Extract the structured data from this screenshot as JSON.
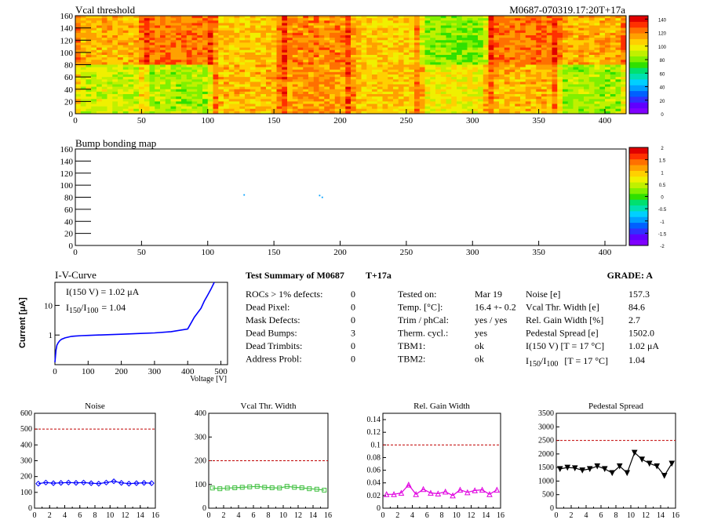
{
  "header": {
    "module_tag": "M0687-070319.17:20T+17a"
  },
  "chart_data": [
    {
      "id": "vcal-threshold",
      "type": "heatmap",
      "title": "Vcal threshold",
      "xlim": [
        0,
        416
      ],
      "ylim": [
        0,
        160
      ],
      "xticks": [
        0,
        50,
        100,
        150,
        200,
        250,
        300,
        350,
        400
      ],
      "yticks": [
        0,
        20,
        40,
        60,
        80,
        100,
        120,
        140,
        160
      ],
      "zlim": [
        0,
        145
      ],
      "zticks": [
        0,
        20,
        40,
        60,
        80,
        100,
        120,
        140
      ],
      "roc_cols": 8,
      "roc_rows": 2,
      "roc_means_top": [
        112,
        122,
        108,
        120,
        106,
        82,
        122,
        112
      ],
      "roc_means_bottom": [
        92,
        86,
        110,
        116,
        108,
        100,
        110,
        86
      ],
      "palette": [
        "#8000ff",
        "#0040ff",
        "#00b0ff",
        "#00e0c0",
        "#00e060",
        "#60e000",
        "#c0f000",
        "#ffff00",
        "#ffd000",
        "#ff9000",
        "#ff4000",
        "#e00000"
      ]
    },
    {
      "id": "bump-bonding",
      "type": "heatmap",
      "title": "Bump bonding map",
      "xlim": [
        0,
        416
      ],
      "ylim": [
        0,
        160
      ],
      "xticks": [
        0,
        50,
        100,
        150,
        200,
        250,
        300,
        350,
        400
      ],
      "yticks": [
        0,
        20,
        40,
        60,
        80,
        100,
        120,
        140,
        160
      ],
      "zlim": [
        -2,
        2
      ],
      "zticks": [
        "2",
        "1.5",
        "1",
        "0.5",
        "0",
        "-0.5",
        "-1",
        "-1.5",
        "-2"
      ],
      "points": [
        [
          127,
          85
        ],
        [
          184,
          84
        ],
        [
          186,
          81
        ]
      ]
    },
    {
      "id": "iv-curve",
      "type": "line",
      "title": "I-V-Curve",
      "xlabel": "Voltage [V]",
      "ylabel": "Current [μA]",
      "xlim": [
        0,
        520
      ],
      "ylim_log": [
        0.1,
        60
      ],
      "xticks": [
        0,
        100,
        200,
        300,
        400,
        500
      ],
      "yticks": [
        1,
        10
      ],
      "annotation_1": "I(150 V) = 1.02 μA",
      "annotation_2_base": "I",
      "annotation_2_sub1": "150",
      "annotation_2_sep": "/I",
      "annotation_2_sub2": "100",
      "annotation_2_value": "=  1.04",
      "x": [
        0,
        3,
        6,
        10,
        15,
        20,
        30,
        40,
        50,
        60,
        80,
        100,
        150,
        200,
        250,
        300,
        350,
        400,
        405,
        420,
        440,
        450,
        460,
        470,
        480
      ],
      "y": [
        0.12,
        0.3,
        0.45,
        0.55,
        0.65,
        0.72,
        0.8,
        0.85,
        0.9,
        0.92,
        0.95,
        0.97,
        1.02,
        1.06,
        1.12,
        1.18,
        1.3,
        1.6,
        2.0,
        4.0,
        8.0,
        14.0,
        22.0,
        35.0,
        60.0
      ]
    },
    {
      "id": "noise",
      "type": "line",
      "title": "Noise",
      "xlim": [
        0,
        16
      ],
      "ylim": [
        0,
        600
      ],
      "xticks": [
        0,
        2,
        4,
        6,
        8,
        10,
        12,
        14,
        16
      ],
      "yticks": [
        0,
        100,
        200,
        300,
        400,
        500,
        600
      ],
      "threshold": 500,
      "marker": "diamond",
      "color": "#0000ff",
      "x": [
        0.5,
        1.5,
        2.5,
        3.5,
        4.5,
        5.5,
        6.5,
        7.5,
        8.5,
        9.5,
        10.5,
        11.5,
        12.5,
        13.5,
        14.5,
        15.5
      ],
      "y": [
        155,
        162,
        158,
        160,
        162,
        160,
        162,
        158,
        155,
        162,
        170,
        160,
        155,
        158,
        160,
        158
      ]
    },
    {
      "id": "vcal-width",
      "type": "line",
      "title": "Vcal Thr. Width",
      "xlim": [
        0,
        16
      ],
      "ylim": [
        0,
        400
      ],
      "xticks": [
        0,
        2,
        4,
        6,
        8,
        10,
        12,
        14,
        16
      ],
      "yticks": [
        0,
        100,
        200,
        300,
        400
      ],
      "threshold": 200,
      "marker": "square",
      "color": "#40c040",
      "x": [
        0.5,
        1.5,
        2.5,
        3.5,
        4.5,
        5.5,
        6.5,
        7.5,
        8.5,
        9.5,
        10.5,
        11.5,
        12.5,
        13.5,
        14.5,
        15.5
      ],
      "y": [
        85,
        82,
        85,
        86,
        88,
        90,
        92,
        88,
        86,
        85,
        92,
        88,
        86,
        82,
        80,
        76
      ]
    },
    {
      "id": "gain-width",
      "type": "line",
      "title": "Rel. Gain Width",
      "xlim": [
        0,
        16
      ],
      "ylim": [
        0,
        0.15
      ],
      "xticks": [
        0,
        2,
        4,
        6,
        8,
        10,
        12,
        14,
        16
      ],
      "yticks": [
        0,
        0.02,
        0.04,
        0.06,
        0.08,
        0.1,
        0.12,
        0.14
      ],
      "ytick_labels": [
        "0",
        "0.02",
        "0.04",
        "0.06",
        "0.08",
        "0.1",
        "0.12",
        "0.14"
      ],
      "threshold": 0.1,
      "marker": "triangle",
      "color": "#e000e0",
      "x": [
        0.5,
        1.5,
        2.5,
        3.5,
        4.5,
        5.5,
        6.5,
        7.5,
        8.5,
        9.5,
        10.5,
        11.5,
        12.5,
        13.5,
        14.5,
        15.5
      ],
      "y": [
        0.022,
        0.022,
        0.024,
        0.037,
        0.022,
        0.03,
        0.024,
        0.023,
        0.026,
        0.02,
        0.029,
        0.025,
        0.028,
        0.029,
        0.022,
        0.029
      ]
    },
    {
      "id": "pedestal-spread",
      "type": "line",
      "title": "Pedestal Spread",
      "xlim": [
        0,
        16
      ],
      "ylim": [
        0,
        3500
      ],
      "xticks": [
        0,
        2,
        4,
        6,
        8,
        10,
        12,
        14,
        16
      ],
      "yticks": [
        0,
        500,
        1000,
        1500,
        2000,
        2500,
        3000,
        3500
      ],
      "threshold": 2500,
      "marker": "triangle-down",
      "color": "#000000",
      "x": [
        0.5,
        1.5,
        2.5,
        3.5,
        4.5,
        5.5,
        6.5,
        7.5,
        8.5,
        9.5,
        10.5,
        11.5,
        12.5,
        13.5,
        14.5,
        15.5
      ],
      "y": [
        1450,
        1500,
        1480,
        1400,
        1450,
        1550,
        1450,
        1300,
        1550,
        1300,
        2050,
        1800,
        1650,
        1550,
        1200,
        1650
      ]
    }
  ],
  "summary": {
    "heading": "Test Summary of M0687",
    "tag": "T+17a",
    "grade": "GRADE:  A",
    "col1": [
      {
        "label": "ROCs > 1% defects:",
        "value": "0"
      },
      {
        "label": "Dead Pixel:",
        "value": "0"
      },
      {
        "label": "Mask Defects:",
        "value": "0"
      },
      {
        "label": "Dead Bumps:",
        "value": "3"
      },
      {
        "label": "Dead Trimbits:",
        "value": "0"
      },
      {
        "label": "Address Probl:",
        "value": "0"
      }
    ],
    "col2": [
      {
        "label": "Tested on:",
        "value": "Mar 19"
      },
      {
        "label": "Temp. [°C]:",
        "value": "16.4 +- 0.2"
      },
      {
        "label": "Trim / phCal:",
        "value": "yes / yes"
      },
      {
        "label": "Therm. cycl.:",
        "value": "yes"
      },
      {
        "label": "TBM1:",
        "value": "ok"
      },
      {
        "label": "TBM2:",
        "value": "ok"
      }
    ],
    "col3": [
      {
        "label": "Noise [e]",
        "value": "157.3"
      },
      {
        "label": "Vcal Thr. Width [e]",
        "value": "84.6"
      },
      {
        "label": "Rel. Gain Width [%]",
        "value": "2.7"
      },
      {
        "label": "Pedestal Spread [e]",
        "value": "1502.0"
      },
      {
        "label": "I(150 V) [T = 17 °C]",
        "value": "1.02 μA"
      }
    ],
    "col3_ratio": {
      "base": "I",
      "sub1": "150",
      "sep": "/I",
      "sub2": "100",
      "cond": "[T = 17 °C]",
      "value": "1.04"
    }
  }
}
